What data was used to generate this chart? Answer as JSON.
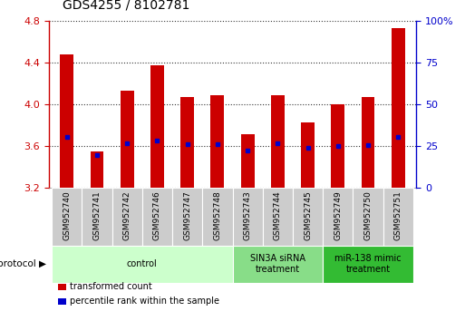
{
  "title": "GDS4255 / 8102781",
  "samples": [
    "GSM952740",
    "GSM952741",
    "GSM952742",
    "GSM952746",
    "GSM952747",
    "GSM952748",
    "GSM952743",
    "GSM952744",
    "GSM952745",
    "GSM952749",
    "GSM952750",
    "GSM952751"
  ],
  "bar_tops": [
    4.48,
    3.55,
    4.13,
    4.37,
    4.07,
    4.09,
    3.71,
    4.09,
    3.83,
    4.0,
    4.07,
    4.73
  ],
  "bar_bottom": 3.2,
  "blue_dots": [
    3.69,
    3.51,
    3.63,
    3.65,
    3.62,
    3.62,
    3.56,
    3.63,
    3.58,
    3.6,
    3.61,
    3.69
  ],
  "ylim_left": [
    3.2,
    4.8
  ],
  "ylim_right": [
    0,
    100
  ],
  "yticks_left": [
    3.2,
    3.6,
    4.0,
    4.4,
    4.8
  ],
  "yticks_right": [
    0,
    25,
    50,
    75,
    100
  ],
  "bar_color": "#cc0000",
  "dot_color": "#0000cc",
  "grid_color": "#000000",
  "groups": [
    {
      "label": "control",
      "start": 0,
      "end": 6,
      "color": "#ccffcc"
    },
    {
      "label": "SIN3A siRNA\ntreatment",
      "start": 6,
      "end": 9,
      "color": "#88dd88"
    },
    {
      "label": "miR-138 mimic\ntreatment",
      "start": 9,
      "end": 12,
      "color": "#33bb33"
    }
  ],
  "protocol_label": "protocol",
  "legend_labels": [
    "transformed count",
    "percentile rank within the sample"
  ],
  "legend_colors": [
    "#cc0000",
    "#0000cc"
  ],
  "bar_width": 0.45,
  "xlabel_fontsize": 6.5,
  "title_fontsize": 10,
  "label_box_color": "#cccccc",
  "bg_color": "#ffffff"
}
